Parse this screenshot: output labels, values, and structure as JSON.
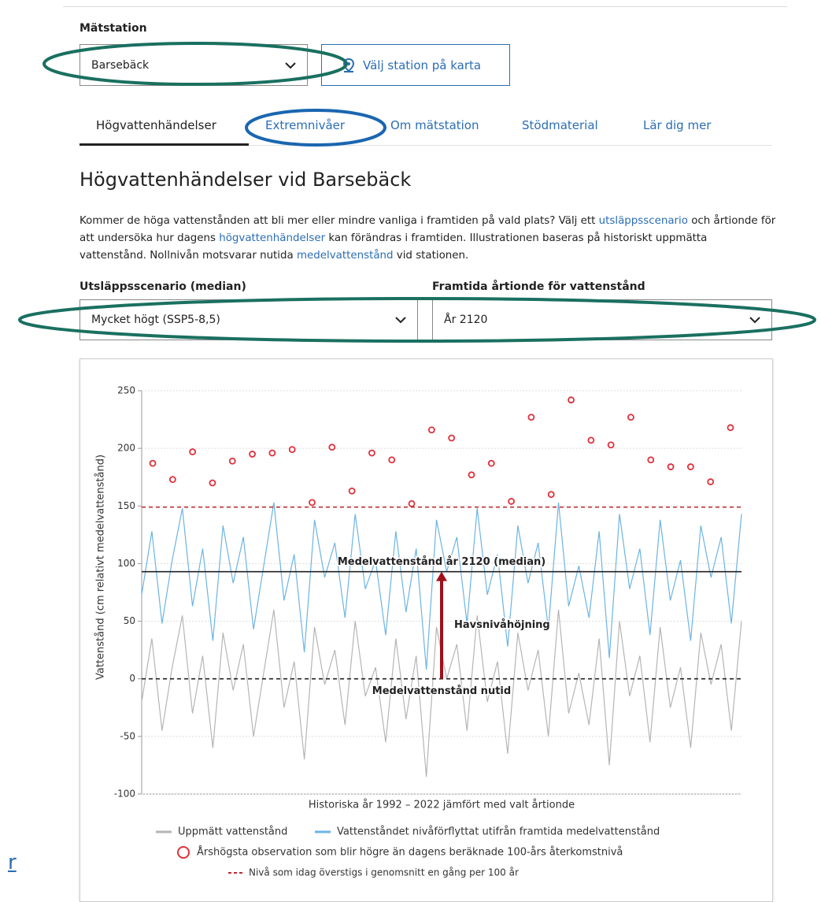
{
  "station": {
    "label": "Mätstation",
    "selected": "Barsebäck",
    "map_button": "Välj station på karta"
  },
  "tabs": [
    "Högvattenhändelser",
    "Extremnivåer",
    "Om mätstation",
    "Stödmaterial",
    "Lär dig mer"
  ],
  "heading": "Högvattenhändelser vid Barsebäck",
  "paragraph": [
    "Kommer de höga vattenstånden att bli mer eller mindre vanliga i framtiden på vald plats? Välj ett ",
    "utsläppsscenario",
    " och årtionde för att undersöka hur dagens ",
    "högvattenhändelser",
    " kan förändras i framtiden. Illustrationen baseras på historiskt uppmätta vattenstånd. Nollnivån motsvarar nutida ",
    "medelvattenstånd",
    " vid stationen."
  ],
  "scenario": {
    "label": "Utsläppsscenario (median)",
    "selected": "Mycket högt (SSP5-8,5)"
  },
  "decade": {
    "label": "Framtida årtionde för vattenstånd",
    "selected": "År 2120"
  },
  "side_link": "r",
  "chart_data": {
    "type": "line",
    "ylabel": "Vattenstånd (cm relativt medelvattenstånd)",
    "xlabel": "Historiska år 1992 – 2022 jämfört med valt årtionde",
    "ylim": [
      -100,
      250
    ],
    "yticks": [
      -100,
      -50,
      0,
      50,
      100,
      150,
      200,
      250
    ],
    "series": [
      {
        "name": "Uppmätt vattenstånd",
        "color": "#b5b5b5",
        "values": [
          -20,
          35,
          -45,
          10,
          55,
          -30,
          20,
          -60,
          40,
          -10,
          30,
          -50,
          5,
          60,
          -25,
          15,
          -70,
          45,
          -5,
          25,
          -40,
          50,
          -15,
          10,
          -55,
          35,
          -35,
          20,
          -85,
          45,
          0,
          30,
          -45,
          55,
          -20,
          15,
          -65,
          40,
          -10,
          25,
          -50,
          60,
          -30,
          5,
          -40,
          35,
          -75,
          50,
          -15,
          20,
          -55,
          45,
          -25,
          10,
          -60,
          40,
          -5,
          30,
          -45,
          50
        ]
      },
      {
        "name": "Vattenståndet nivåförflyttat utifrån framtida medelvattenstånd",
        "color": "#6cb4e4",
        "values": [
          73,
          128,
          48,
          103,
          148,
          63,
          113,
          33,
          133,
          83,
          123,
          43,
          98,
          153,
          68,
          108,
          23,
          138,
          88,
          118,
          53,
          143,
          78,
          103,
          38,
          128,
          58,
          113,
          8,
          138,
          93,
          123,
          48,
          148,
          73,
          108,
          28,
          133,
          83,
          118,
          43,
          153,
          63,
          98,
          53,
          128,
          18,
          143,
          78,
          113,
          38,
          138,
          68,
          103,
          33,
          133,
          88,
          123,
          48,
          143
        ]
      }
    ],
    "annual_max": {
      "name": "Årshögsta observation som blir högre än dagens beräknade 100-års återkomstnivå",
      "color": "#e0303a",
      "values": [
        187,
        173,
        197,
        170,
        189,
        195,
        196,
        199,
        153,
        201,
        163,
        196,
        190,
        152,
        216,
        209,
        177,
        187,
        154,
        227,
        160,
        242,
        207,
        203,
        227,
        190,
        184,
        184,
        171,
        218
      ]
    },
    "reference_lines": [
      {
        "name": "Nivå som idag överstigs i genomsnitt en gång per 100 år",
        "value": 149,
        "color": "#c0282d",
        "dashed": true
      },
      {
        "name": "Medelvattenstånd år 2120 (median)",
        "value": 93,
        "color": "#222222",
        "dashed": false
      },
      {
        "name": "Medelvattenstånd nutid",
        "value": 0,
        "color": "#222222",
        "dashed": true
      }
    ],
    "annotation": "Havsnivåhöjning",
    "arrow_color": "#a0101a"
  }
}
